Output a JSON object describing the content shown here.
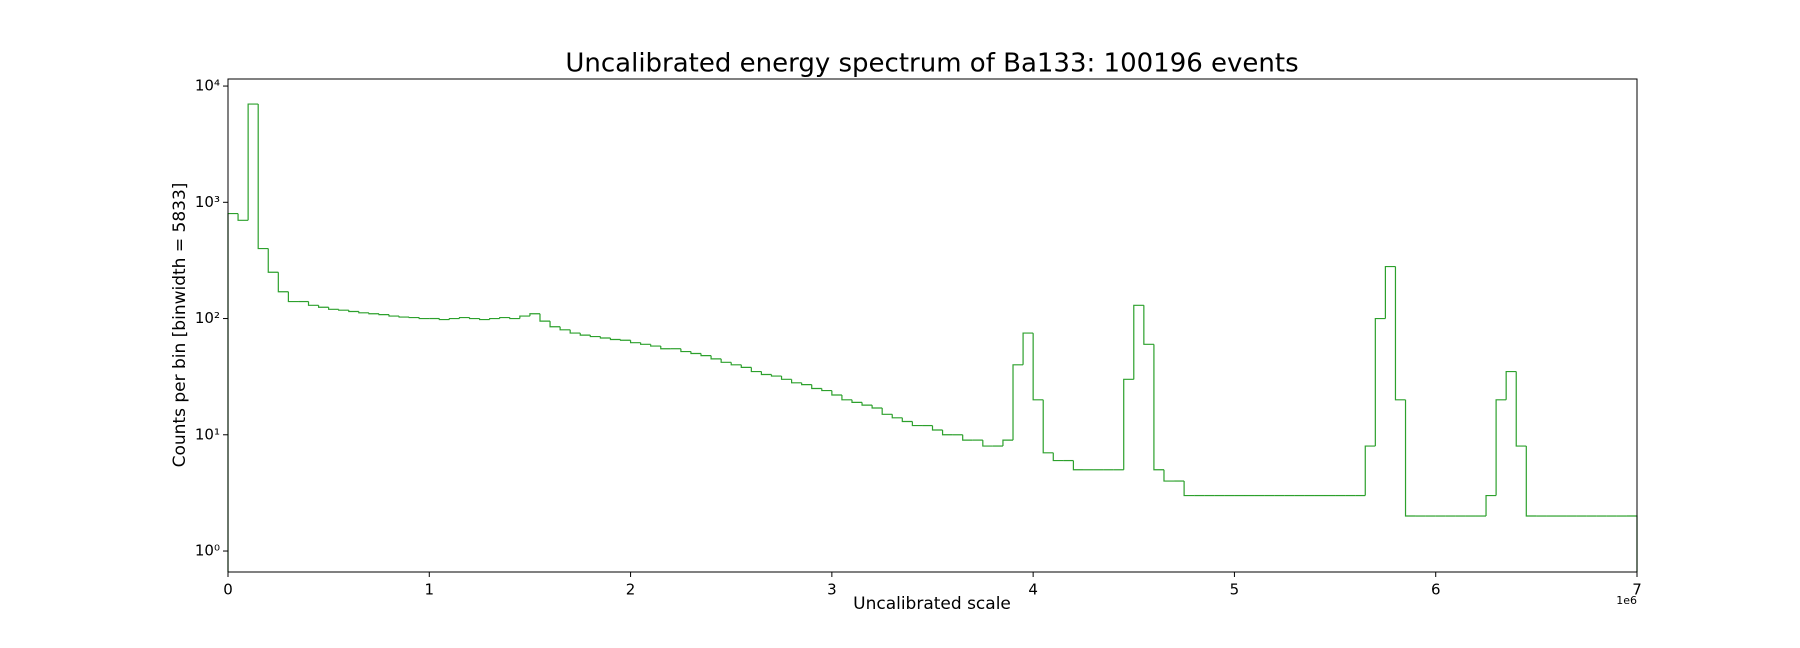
{
  "chart_data": {
    "type": "histogram",
    "title": "Uncalibrated energy spectrum of Ba133:   100196 events",
    "x_label": "Uncalibrated scale",
    "y_label": "Counts per bin [binwidth = 5833]",
    "x_offset_label": "1e6",
    "color": "#2ca02c",
    "log_y": true,
    "bins": [
      0,
      50000,
      100000,
      150000,
      200000,
      250000,
      300000,
      350000,
      400000,
      450000,
      500000,
      550000,
      600000,
      650000,
      700000,
      750000,
      800000,
      850000,
      900000,
      950000,
      1000000,
      1050000,
      1100000,
      1150000,
      1200000,
      1250000,
      1300000,
      1350000,
      1400000,
      1450000,
      1500000,
      1550000,
      1600000,
      1650000,
      1700000,
      1750000,
      1800000,
      1850000,
      1900000,
      1950000,
      2000000,
      2050000,
      2100000,
      2150000,
      2200000,
      2250000,
      2300000,
      2350000,
      2400000,
      2450000,
      2500000,
      2550000,
      2600000,
      2650000,
      2700000,
      2750000,
      2800000,
      2850000,
      2900000,
      2950000,
      3000000,
      3050000,
      3100000,
      3150000,
      3200000,
      3250000,
      3300000,
      3350000,
      3400000,
      3450000,
      3500000,
      3550000,
      3600000,
      3650000,
      3700000,
      3750000,
      3800000,
      3850000,
      3900000,
      3950000,
      4000000,
      4050000,
      4100000,
      4150000,
      4200000,
      4250000,
      4300000,
      4350000,
      4400000,
      4450000,
      4500000,
      4550000,
      4600000,
      4650000,
      4700000,
      4750000,
      4800000,
      4850000,
      4900000,
      4950000,
      5000000,
      5050000,
      5100000,
      5150000,
      5200000,
      5250000,
      5300000,
      5350000,
      5400000,
      5450000,
      5500000,
      5550000,
      5600000,
      5650000,
      5700000,
      5750000,
      5800000,
      5850000,
      5900000,
      5950000,
      6000000,
      6050000,
      6100000,
      6150000,
      6200000,
      6250000,
      6300000,
      6350000,
      6400000,
      6450000,
      6500000,
      6550000,
      6600000,
      6650000,
      6700000,
      6750000,
      6800000,
      6850000,
      6900000,
      6950000,
      7000000
    ],
    "values": [
      800,
      700,
      7000,
      400,
      250,
      170,
      140,
      140,
      130,
      125,
      120,
      118,
      115,
      112,
      110,
      108,
      105,
      103,
      102,
      100,
      100,
      98,
      100,
      102,
      100,
      98,
      100,
      102,
      100,
      105,
      110,
      95,
      85,
      80,
      75,
      72,
      70,
      68,
      66,
      65,
      62,
      60,
      58,
      55,
      55,
      52,
      50,
      48,
      45,
      42,
      40,
      38,
      35,
      33,
      32,
      30,
      28,
      27,
      25,
      24,
      22,
      20,
      19,
      18,
      17,
      15,
      14,
      13,
      12,
      12,
      11,
      10,
      10,
      9,
      9,
      8,
      8,
      9,
      40,
      75,
      20,
      7,
      6,
      6,
      5,
      5,
      5,
      5,
      5,
      30,
      130,
      60,
      5,
      4,
      4,
      3,
      3,
      3,
      3,
      3,
      3,
      3,
      3,
      3,
      3,
      3,
      3,
      3,
      3,
      3,
      3,
      3,
      3,
      8,
      100,
      280,
      20,
      2,
      2,
      2,
      2,
      2,
      2,
      2,
      2,
      3,
      20,
      35,
      8,
      2,
      2,
      2,
      2,
      2,
      2,
      2,
      2,
      2,
      2,
      2
    ],
    "xlim": [
      0,
      7000000
    ],
    "xticks": [
      0,
      {
        "value": 1000000,
        "label": "1"
      },
      {
        "value": 2000000,
        "label": "2"
      },
      {
        "value": 3000000,
        "label": "3"
      },
      {
        "value": 4000000,
        "label": "4"
      },
      {
        "value": 5000000,
        "label": "5"
      },
      {
        "value": 6000000,
        "label": "6"
      },
      {
        "value": 7000000,
        "label": "7"
      }
    ],
    "ylim": [
      0.66,
      11500
    ],
    "yticks": [
      {
        "value": 1,
        "label": "10⁰"
      },
      {
        "value": 10,
        "label": "10¹"
      },
      {
        "value": 100,
        "label": "10²"
      },
      {
        "value": 1000,
        "label": "10³"
      },
      {
        "value": 10000,
        "label": "10⁴"
      }
    ]
  }
}
